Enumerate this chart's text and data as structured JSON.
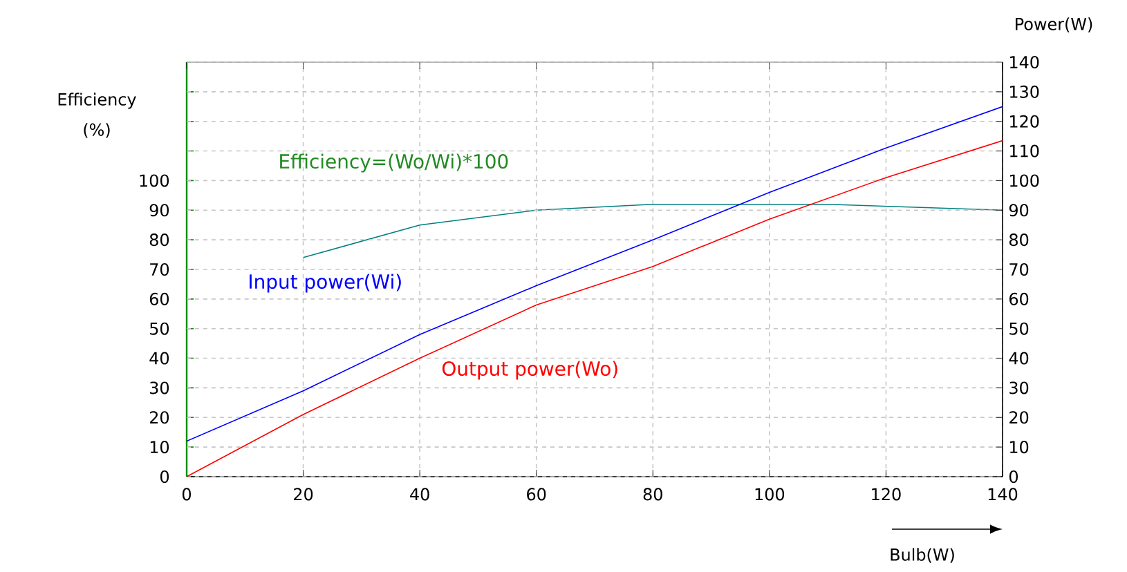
{
  "chart_data": {
    "type": "line",
    "ylabel": "Efficiency (%)",
    "y2label": "Power(W)",
    "xlabel": "Bulb(W)",
    "xlim": [
      0,
      140
    ],
    "xticks": [
      0,
      20,
      40,
      60,
      80,
      100,
      120,
      140
    ],
    "ylim": [
      0,
      140
    ],
    "yticks": [
      0,
      10,
      20,
      30,
      40,
      50,
      60,
      70,
      80,
      90,
      100,
      {
        "value": 110,
        "label": null
      },
      {
        "value": 120,
        "label": null
      },
      {
        "value": 130,
        "label": null
      }
    ],
    "y2lim": [
      0,
      140
    ],
    "y2ticks": [
      0,
      10,
      20,
      30,
      40,
      50,
      60,
      70,
      80,
      90,
      100,
      110,
      120,
      130,
      140
    ],
    "grid": true,
    "marker": "none",
    "line_style": "solid",
    "series": [
      {
        "name": "Efficiency=(Wo/Wi)*100",
        "color": "#008080",
        "axis": "y",
        "x": [
          20,
          40,
          60,
          80,
          110,
          125,
          140
        ],
        "values": [
          74,
          85,
          90,
          92,
          92,
          91,
          90
        ]
      },
      {
        "name": "Input power(Wi)",
        "color": "#0000ff",
        "axis": "y2",
        "x": [
          0,
          20,
          40,
          60,
          80,
          100,
          120,
          140
        ],
        "values": [
          12,
          29,
          48,
          64.5,
          80,
          96,
          111,
          125
        ]
      },
      {
        "name": "Output power(Wo)",
        "color": "#ff0000",
        "axis": "y2",
        "x": [
          0,
          20,
          40,
          60,
          80,
          100,
          120,
          140
        ],
        "values": [
          0,
          21,
          40,
          58,
          71,
          87,
          101,
          113.5
        ]
      }
    ]
  }
}
